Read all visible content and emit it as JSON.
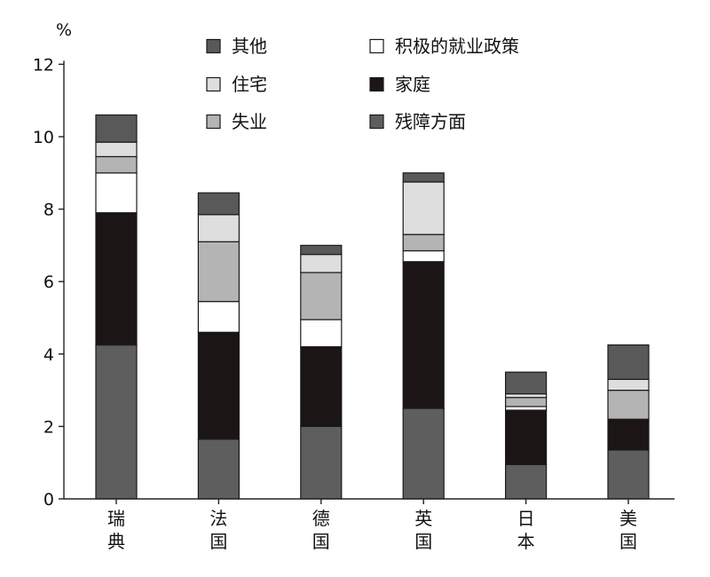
{
  "chart_data": {
    "type": "bar",
    "stacked": true,
    "title": "",
    "xlabel": "",
    "ylabel": "%",
    "ylim": [
      0,
      12
    ],
    "yticks": [
      "0",
      "2",
      "4",
      "6",
      "8",
      "10",
      "12"
    ],
    "grid": false,
    "legend_position": "top",
    "categories": [
      [
        "瑞",
        "典"
      ],
      [
        "法",
        "国"
      ],
      [
        "德",
        "国"
      ],
      [
        "英",
        "国"
      ],
      [
        "日",
        "本"
      ],
      [
        "美",
        "国"
      ]
    ],
    "series": [
      {
        "name": "残障方面",
        "color": "#5e5e5e",
        "values": [
          4.25,
          1.65,
          2.0,
          2.5,
          0.95,
          1.35
        ]
      },
      {
        "name": "家庭",
        "color": "#1c1516",
        "values": [
          3.65,
          2.95,
          2.2,
          4.05,
          1.5,
          0.85
        ]
      },
      {
        "name": "积极的就业政策",
        "color": "#ffffff",
        "values": [
          1.1,
          0.85,
          0.75,
          0.3,
          0.1,
          0.0
        ]
      },
      {
        "name": "失业",
        "color": "#b4b4b4",
        "values": [
          0.45,
          1.65,
          1.3,
          0.45,
          0.25,
          0.8
        ]
      },
      {
        "name": "住宅",
        "color": "#dedede",
        "values": [
          0.4,
          0.75,
          0.5,
          1.45,
          0.1,
          0.3
        ]
      },
      {
        "name": "其他",
        "color": "#595959",
        "values": [
          0.75,
          0.6,
          0.25,
          0.25,
          0.6,
          0.95
        ]
      }
    ],
    "legend_order": [
      "其他",
      "积极的就业政策",
      "住宅",
      "家庭",
      "失业",
      "残障方面"
    ]
  }
}
